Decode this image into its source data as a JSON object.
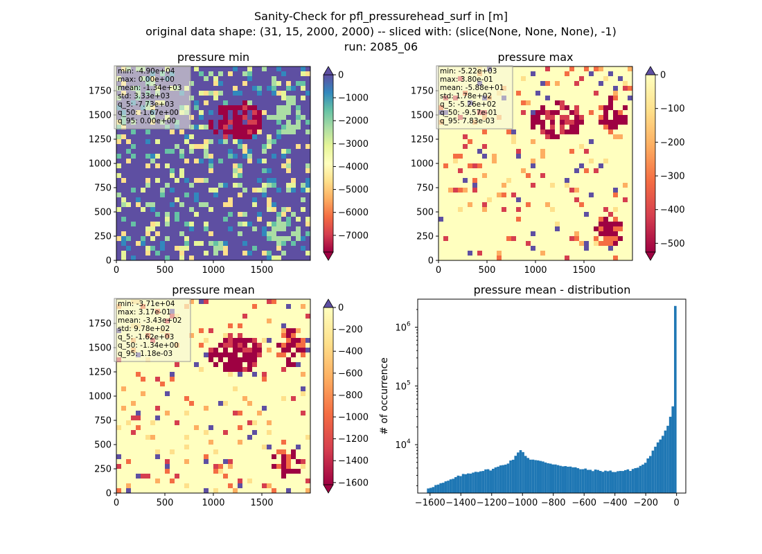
{
  "suptitle": [
    "Sanity-Check for pfl_pressurehead_surf in [m]",
    "original data shape: (31, 15, 2000, 2000) -- sliced with: (slice(None, None, None), -1)",
    "run: 2085_06"
  ],
  "maps": [
    {
      "title": "pressure min",
      "xticks": [
        0,
        500,
        1000,
        1500
      ],
      "yticks": [
        0,
        250,
        500,
        750,
        1000,
        1250,
        1500,
        1750
      ],
      "stats": [
        "min: -4.90e+04",
        "max: 0.00e+00",
        "mean: -1.34e+03",
        "std: 3.33e+03",
        "q_5: -7.73e+03",
        "q_50: -1.67e+00",
        "q_95: 0.00e+00"
      ],
      "colorbar": {
        "vmin": -7730,
        "vmax": 0,
        "ticks": [
          0,
          -1000,
          -2000,
          -3000,
          -4000,
          -5000,
          -6000,
          -7000
        ],
        "tick_labels": [
          "0",
          "−1000",
          "−2000",
          "−3000",
          "−4000",
          "−5000",
          "−6000",
          "−7000"
        ],
        "extend": "both"
      },
      "dominant": "purple",
      "cmap": "Spectral"
    },
    {
      "title": "pressure max",
      "xticks": [
        0,
        500,
        1000,
        1500
      ],
      "yticks": [
        0,
        250,
        500,
        750,
        1000,
        1250,
        1500,
        1750
      ],
      "stats": [
        "min: -5.22e+03",
        "max: 3.80e-01",
        "mean: -5.88e+01",
        "std: 1.78e+02",
        "q_5: -5.26e+02",
        "q_50: -9.57e-01",
        "q_95: 7.83e-03"
      ],
      "colorbar": {
        "vmin": -526,
        "vmax": 0,
        "ticks": [
          0,
          -100,
          -200,
          -300,
          -400,
          -500
        ],
        "tick_labels": [
          "0",
          "−100",
          "−200",
          "−300",
          "−400",
          "−500"
        ],
        "extend": "both"
      },
      "dominant": "yellow",
      "cmap": "Spectral"
    },
    {
      "title": "pressure mean",
      "xticks": [
        0,
        500,
        1000,
        1500
      ],
      "yticks": [
        0,
        250,
        500,
        750,
        1000,
        1250,
        1500,
        1750
      ],
      "stats": [
        "min: -3.71e+04",
        "max: 3.17e-01",
        "mean: -3.43e+02",
        "std: 9.78e+02",
        "q_5: -1.62e+03",
        "q_50: -1.34e+00",
        "q_95: 1.18e-03"
      ],
      "colorbar": {
        "vmin": -1620,
        "vmax": 0,
        "ticks": [
          0,
          -200,
          -400,
          -600,
          -800,
          -1000,
          -1200,
          -1400,
          -1600
        ],
        "tick_labels": [
          "0",
          "−200",
          "−400",
          "−600",
          "−800",
          "−1000",
          "−1200",
          "−1400",
          "−1600"
        ],
        "extend": "both"
      },
      "dominant": "yellow",
      "cmap": "Spectral"
    }
  ],
  "chart_data": {
    "type": "bar",
    "title": "pressure mean - distribution",
    "ylabel": "# of occurrence",
    "xlabel": "",
    "xlim": [
      -1680,
      60
    ],
    "ylim": [
      1500,
      3000000
    ],
    "yscale": "log",
    "color": "#1f77b4",
    "xticks": [
      -1600,
      -1400,
      -1200,
      -1000,
      -800,
      -600,
      -400,
      -200,
      0
    ],
    "xtick_labels": [
      "−1600",
      "−1400",
      "−1200",
      "−1000",
      "−800",
      "−600",
      "−400",
      "−200",
      "0"
    ],
    "yticks": [
      10000,
      100000,
      1000000
    ],
    "ytick_labels": [
      "10",
      "10",
      "10"
    ],
    "ytick_exponents": [
      "4",
      "5",
      "6"
    ],
    "bin_width": 16.2,
    "x_start": -1620,
    "anchors": [
      [
        -1620,
        1800
      ],
      [
        -1500,
        2300
      ],
      [
        -1400,
        3000
      ],
      [
        -1300,
        3500
      ],
      [
        -1200,
        3800
      ],
      [
        -1100,
        4800
      ],
      [
        -1050,
        6000
      ],
      [
        -1010,
        8500
      ],
      [
        -990,
        7000
      ],
      [
        -960,
        5800
      ],
      [
        -900,
        5300
      ],
      [
        -800,
        4700
      ],
      [
        -700,
        4200
      ],
      [
        -600,
        3800
      ],
      [
        -500,
        3600
      ],
      [
        -400,
        3500
      ],
      [
        -300,
        3700
      ],
      [
        -240,
        4200
      ],
      [
        -200,
        5000
      ],
      [
        -150,
        8000
      ],
      [
        -100,
        13000
      ],
      [
        -60,
        20000
      ],
      [
        -30,
        38000
      ],
      [
        -15,
        65000
      ],
      [
        -8,
        90000
      ],
      [
        -2,
        2300000
      ]
    ]
  }
}
